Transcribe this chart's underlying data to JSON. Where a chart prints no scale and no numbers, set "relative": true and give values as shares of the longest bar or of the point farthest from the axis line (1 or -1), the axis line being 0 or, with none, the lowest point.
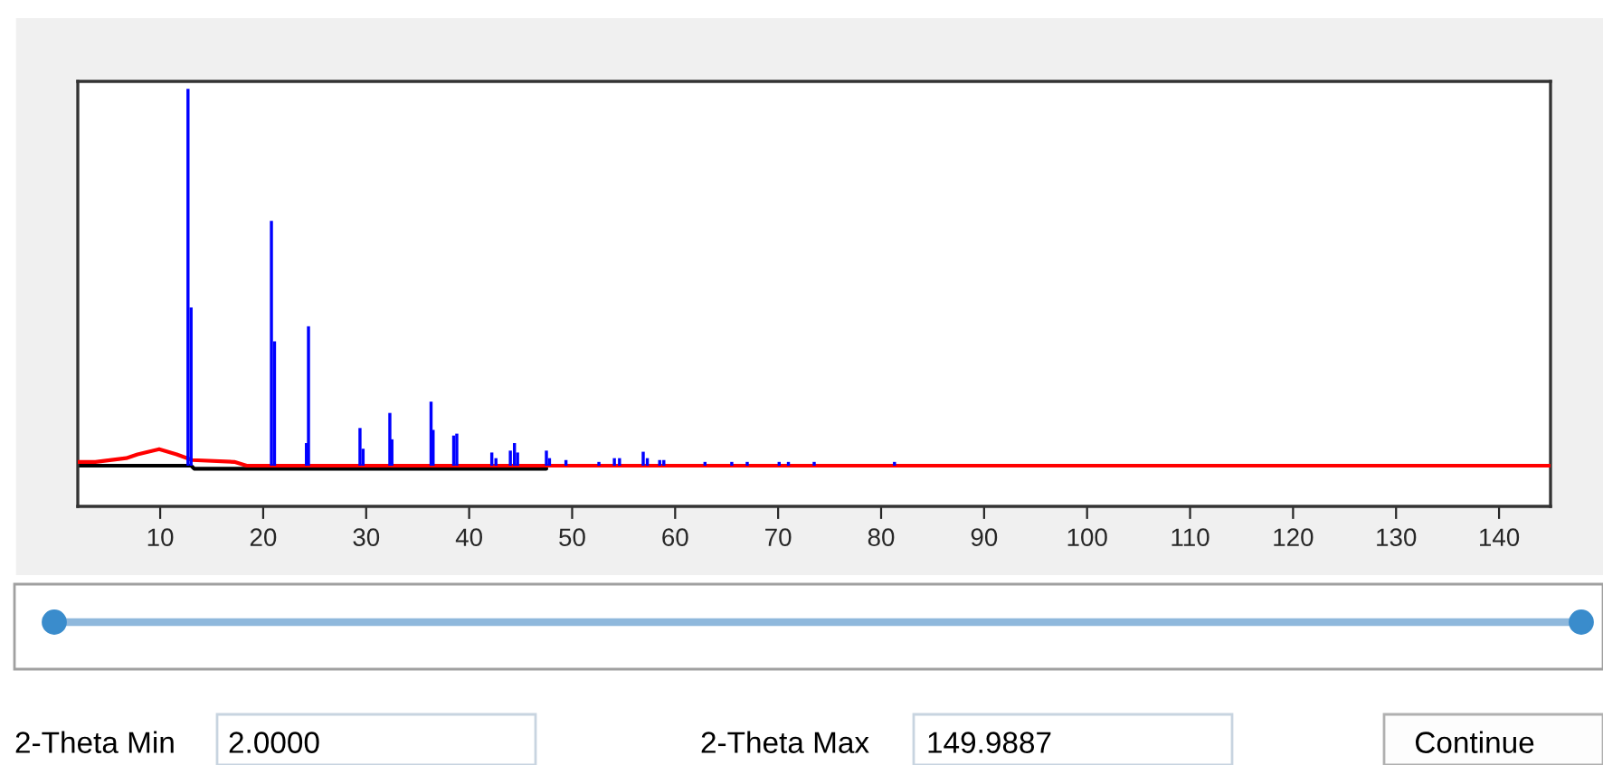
{
  "chart_data": {
    "type": "bar",
    "relative": true,
    "xlim": [
      2,
      145
    ],
    "xticks": [
      10,
      20,
      30,
      40,
      50,
      60,
      70,
      80,
      90,
      100,
      110,
      120,
      130,
      140
    ],
    "tick_labels": "x",
    "grid": false,
    "series": [
      {
        "color": "#0000ff",
        "x": [
          12.7,
          13.0,
          20.8,
          21.1,
          24.2,
          24.4,
          29.4,
          29.7,
          32.3,
          32.5,
          36.3,
          36.5,
          38.5,
          38.8,
          42.2,
          42.6,
          44.0,
          44.4,
          44.7,
          47.5,
          47.8,
          49.4,
          52.6,
          54.1,
          54.6,
          56.9,
          57.3,
          58.5,
          58.9,
          62.9,
          65.5,
          67.0,
          70.1,
          71.0,
          73.5,
          81.3
        ],
        "values": [
          1.0,
          0.42,
          0.65,
          0.33,
          0.06,
          0.37,
          0.1,
          0.045,
          0.14,
          0.07,
          0.17,
          0.095,
          0.08,
          0.085,
          0.035,
          0.02,
          0.04,
          0.06,
          0.035,
          0.04,
          0.02,
          0.015,
          0.01,
          0.02,
          0.02,
          0.037,
          0.02,
          0.015,
          0.015,
          0.01,
          0.01,
          0.01,
          0.01,
          0.01,
          0.01,
          0.01
        ]
      },
      {
        "type": "line",
        "color": "#ff0000",
        "x": [
          2,
          3.7,
          6.7,
          7.8,
          9.9,
          11.6,
          13.1,
          17.2,
          18.4,
          145
        ],
        "values": [
          0.01,
          0.01,
          0.02,
          0.03,
          0.044,
          0.03,
          0.015,
          0.01,
          0.0,
          0.0
        ]
      },
      {
        "type": "line",
        "color": "#000000",
        "x": [
          2,
          13.0,
          13.3,
          47.5
        ],
        "values": [
          0.0,
          0.0,
          -0.008,
          -0.008
        ]
      }
    ],
    "annotations": [
      "2-Theta Min",
      "2.0000",
      "2-Theta Max",
      "149.9887",
      "Continue"
    ]
  }
}
